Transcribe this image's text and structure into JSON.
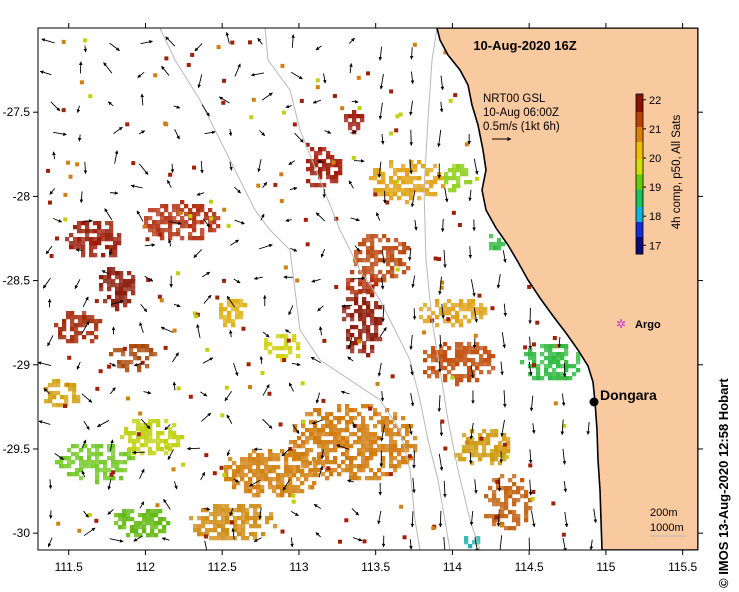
{
  "map": {
    "title": "10-Aug-2020 16Z",
    "credit": "© IMOS 13-Aug-2020 12:58 Hobart",
    "model_label": [
      "NRT00 GSL",
      "10-Aug 06:00Z",
      "0.5m/s (1kt 6h)"
    ],
    "depth_labels": [
      "200m",
      "1000m"
    ],
    "places": [
      {
        "name": "Dongara",
        "lon": 114.92,
        "lat": -29.25
      },
      {
        "name": "Argo",
        "lon": 115.1,
        "lat": -28.9
      }
    ],
    "axes": {
      "x_ticks": [
        "111.5",
        "112",
        "112.5",
        "113",
        "113.5",
        "114",
        "114.5",
        "115",
        "115.5"
      ],
      "y_ticks": [
        "-27.5",
        "-28",
        "-28.5",
        "-29",
        "-29.5",
        "-30"
      ],
      "lon_range": [
        111.3,
        115.6
      ],
      "lat_range": [
        -30.1,
        -27.0
      ]
    },
    "colorbar": {
      "label": "4h comp, p50, All Sats",
      "ticks": [
        "17",
        "18",
        "19",
        "20",
        "21",
        "22"
      ],
      "range": [
        16.7,
        22.2
      ],
      "colors": [
        "#0a0a7a",
        "#1030d0",
        "#10b0e0",
        "#20c060",
        "#60d000",
        "#d0e000",
        "#f0c000",
        "#e08000",
        "#c04000",
        "#901000"
      ]
    },
    "colors": {
      "land": "#f9c9a0",
      "coast": "#000000",
      "isobath": "#b8b8b8",
      "argo": "#d030d0"
    }
  }
}
